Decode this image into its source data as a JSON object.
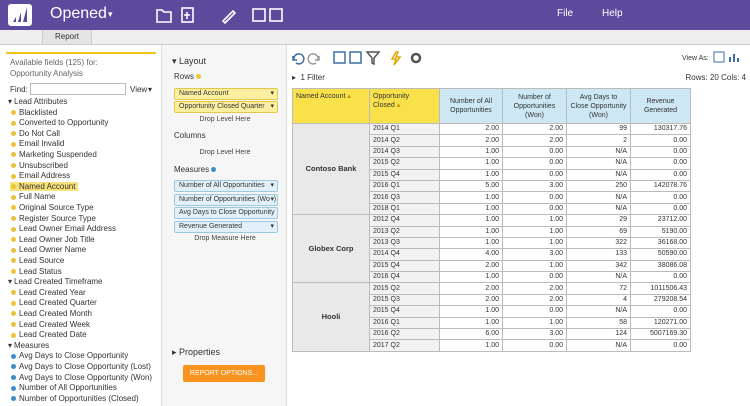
{
  "header": {
    "app_title": "Opened",
    "menu": [
      "File",
      "Help"
    ]
  },
  "tabs": [
    "Report"
  ],
  "fields_panel": {
    "heading": "Available fields (125) for:",
    "subheading": "Opportunity Analysis",
    "find_label": "Find:",
    "view_label": "View",
    "groups": [
      {
        "name": "Lead Attributes",
        "kind": "attribute",
        "items": [
          "Blacklisted",
          "Converted to Opportunity",
          "Do Not Call",
          "Email Invalid",
          "Marketing Suspended",
          "Unsubscribed",
          "Email Address",
          "Named Account",
          "Full Name",
          "Original Source Type",
          "Register Source Type",
          "Lead Owner Email Address",
          "Lead Owner Job Title",
          "Lead Owner Name",
          "Lead Source",
          "Lead Status"
        ]
      },
      {
        "name": "Lead Created Timeframe",
        "kind": "attribute",
        "items": [
          "Lead Created Year",
          "Lead Created Quarter",
          "Lead Created Month",
          "Lead Created Week",
          "Lead Created Date"
        ]
      },
      {
        "name": "Measures",
        "kind": "measure",
        "items": [
          "Avg Days to Close Opportunity",
          "Avg Days to Close Opportunity (Lost)",
          "Avg Days to Close Opportunity (Won)",
          "Number of All Opportunities",
          "Number of Opportunities (Closed)"
        ]
      }
    ],
    "selected": "Named Account"
  },
  "layout_panel": {
    "title": "Layout",
    "rows_label": "Rows",
    "rows": [
      "Named Account",
      "Opportunity Closed Quarter"
    ],
    "rows_drop": "Drop Level Here",
    "columns_label": "Columns",
    "columns_drop": "Drop Level Here",
    "measures_label": "Measures",
    "measures": [
      "Number of All Opportunities",
      "Number of Opportunities (Won)",
      "Avg Days to Close Opportunity (Won)",
      "Revenue Generated"
    ],
    "measures_drop": "Drop Measure Here",
    "properties_title": "Properties",
    "options_button": "REPORT OPTIONS..."
  },
  "report": {
    "view_as": "View As:",
    "filter": "1 Filter",
    "counts": "Rows: 20  Cols: 4",
    "table": {
      "headers": [
        "Named Account",
        "Opportunity Closed",
        "Number of All Opportunities",
        "Number of Opportunities (Won)",
        "Avg Days to Close Opportunity (Won)",
        "Revenue Generated"
      ],
      "groups": [
        {
          "account": "Contoso Bank",
          "rows": [
            [
              "2014 Q1",
              "2.00",
              "2.00",
              "99",
              "130317.76"
            ],
            [
              "2014 Q2",
              "2.00",
              "2.00",
              "2",
              "0.00"
            ],
            [
              "2014 Q3",
              "1.00",
              "0.00",
              "N/A",
              "0.00"
            ],
            [
              "2015 Q2",
              "1.00",
              "0.00",
              "N/A",
              "0.00"
            ],
            [
              "2015 Q4",
              "1.00",
              "0.00",
              "N/A",
              "0.00"
            ],
            [
              "2016 Q1",
              "5.00",
              "3.00",
              "250",
              "142078.76"
            ],
            [
              "2016 Q3",
              "1.00",
              "0.00",
              "N/A",
              "0.00"
            ],
            [
              "2018 Q1",
              "1.00",
              "0.00",
              "N/A",
              "0.00"
            ]
          ]
        },
        {
          "account": "Globex Corp",
          "rows": [
            [
              "2012 Q4",
              "1.00",
              "1.00",
              "29",
              "23712.00"
            ],
            [
              "2013 Q2",
              "1.00",
              "1.00",
              "69",
              "5190.00"
            ],
            [
              "2013 Q3",
              "1.00",
              "1.00",
              "322",
              "36168.00"
            ],
            [
              "2014 Q4",
              "4.00",
              "3.00",
              "133",
              "50590.00"
            ],
            [
              "2015 Q4",
              "2.00",
              "1.00",
              "342",
              "38086.08"
            ],
            [
              "2016 Q4",
              "1.00",
              "0.00",
              "N/A",
              "0.00"
            ]
          ]
        },
        {
          "account": "Hooli",
          "rows": [
            [
              "2015 Q2",
              "2.00",
              "2.00",
              "72",
              "1011506.43"
            ],
            [
              "2015 Q3",
              "2.00",
              "2.00",
              "4",
              "279208.54"
            ],
            [
              "2015 Q4",
              "1.00",
              "0.00",
              "N/A",
              "0.00"
            ],
            [
              "2016 Q1",
              "1.00",
              "1.00",
              "58",
              "120271.00"
            ],
            [
              "2016 Q2",
              "6.00",
              "3.00",
              "124",
              "5007169.30"
            ],
            [
              "2017 Q2",
              "1.00",
              "0.00",
              "N/A",
              "0.00"
            ]
          ]
        }
      ]
    }
  }
}
